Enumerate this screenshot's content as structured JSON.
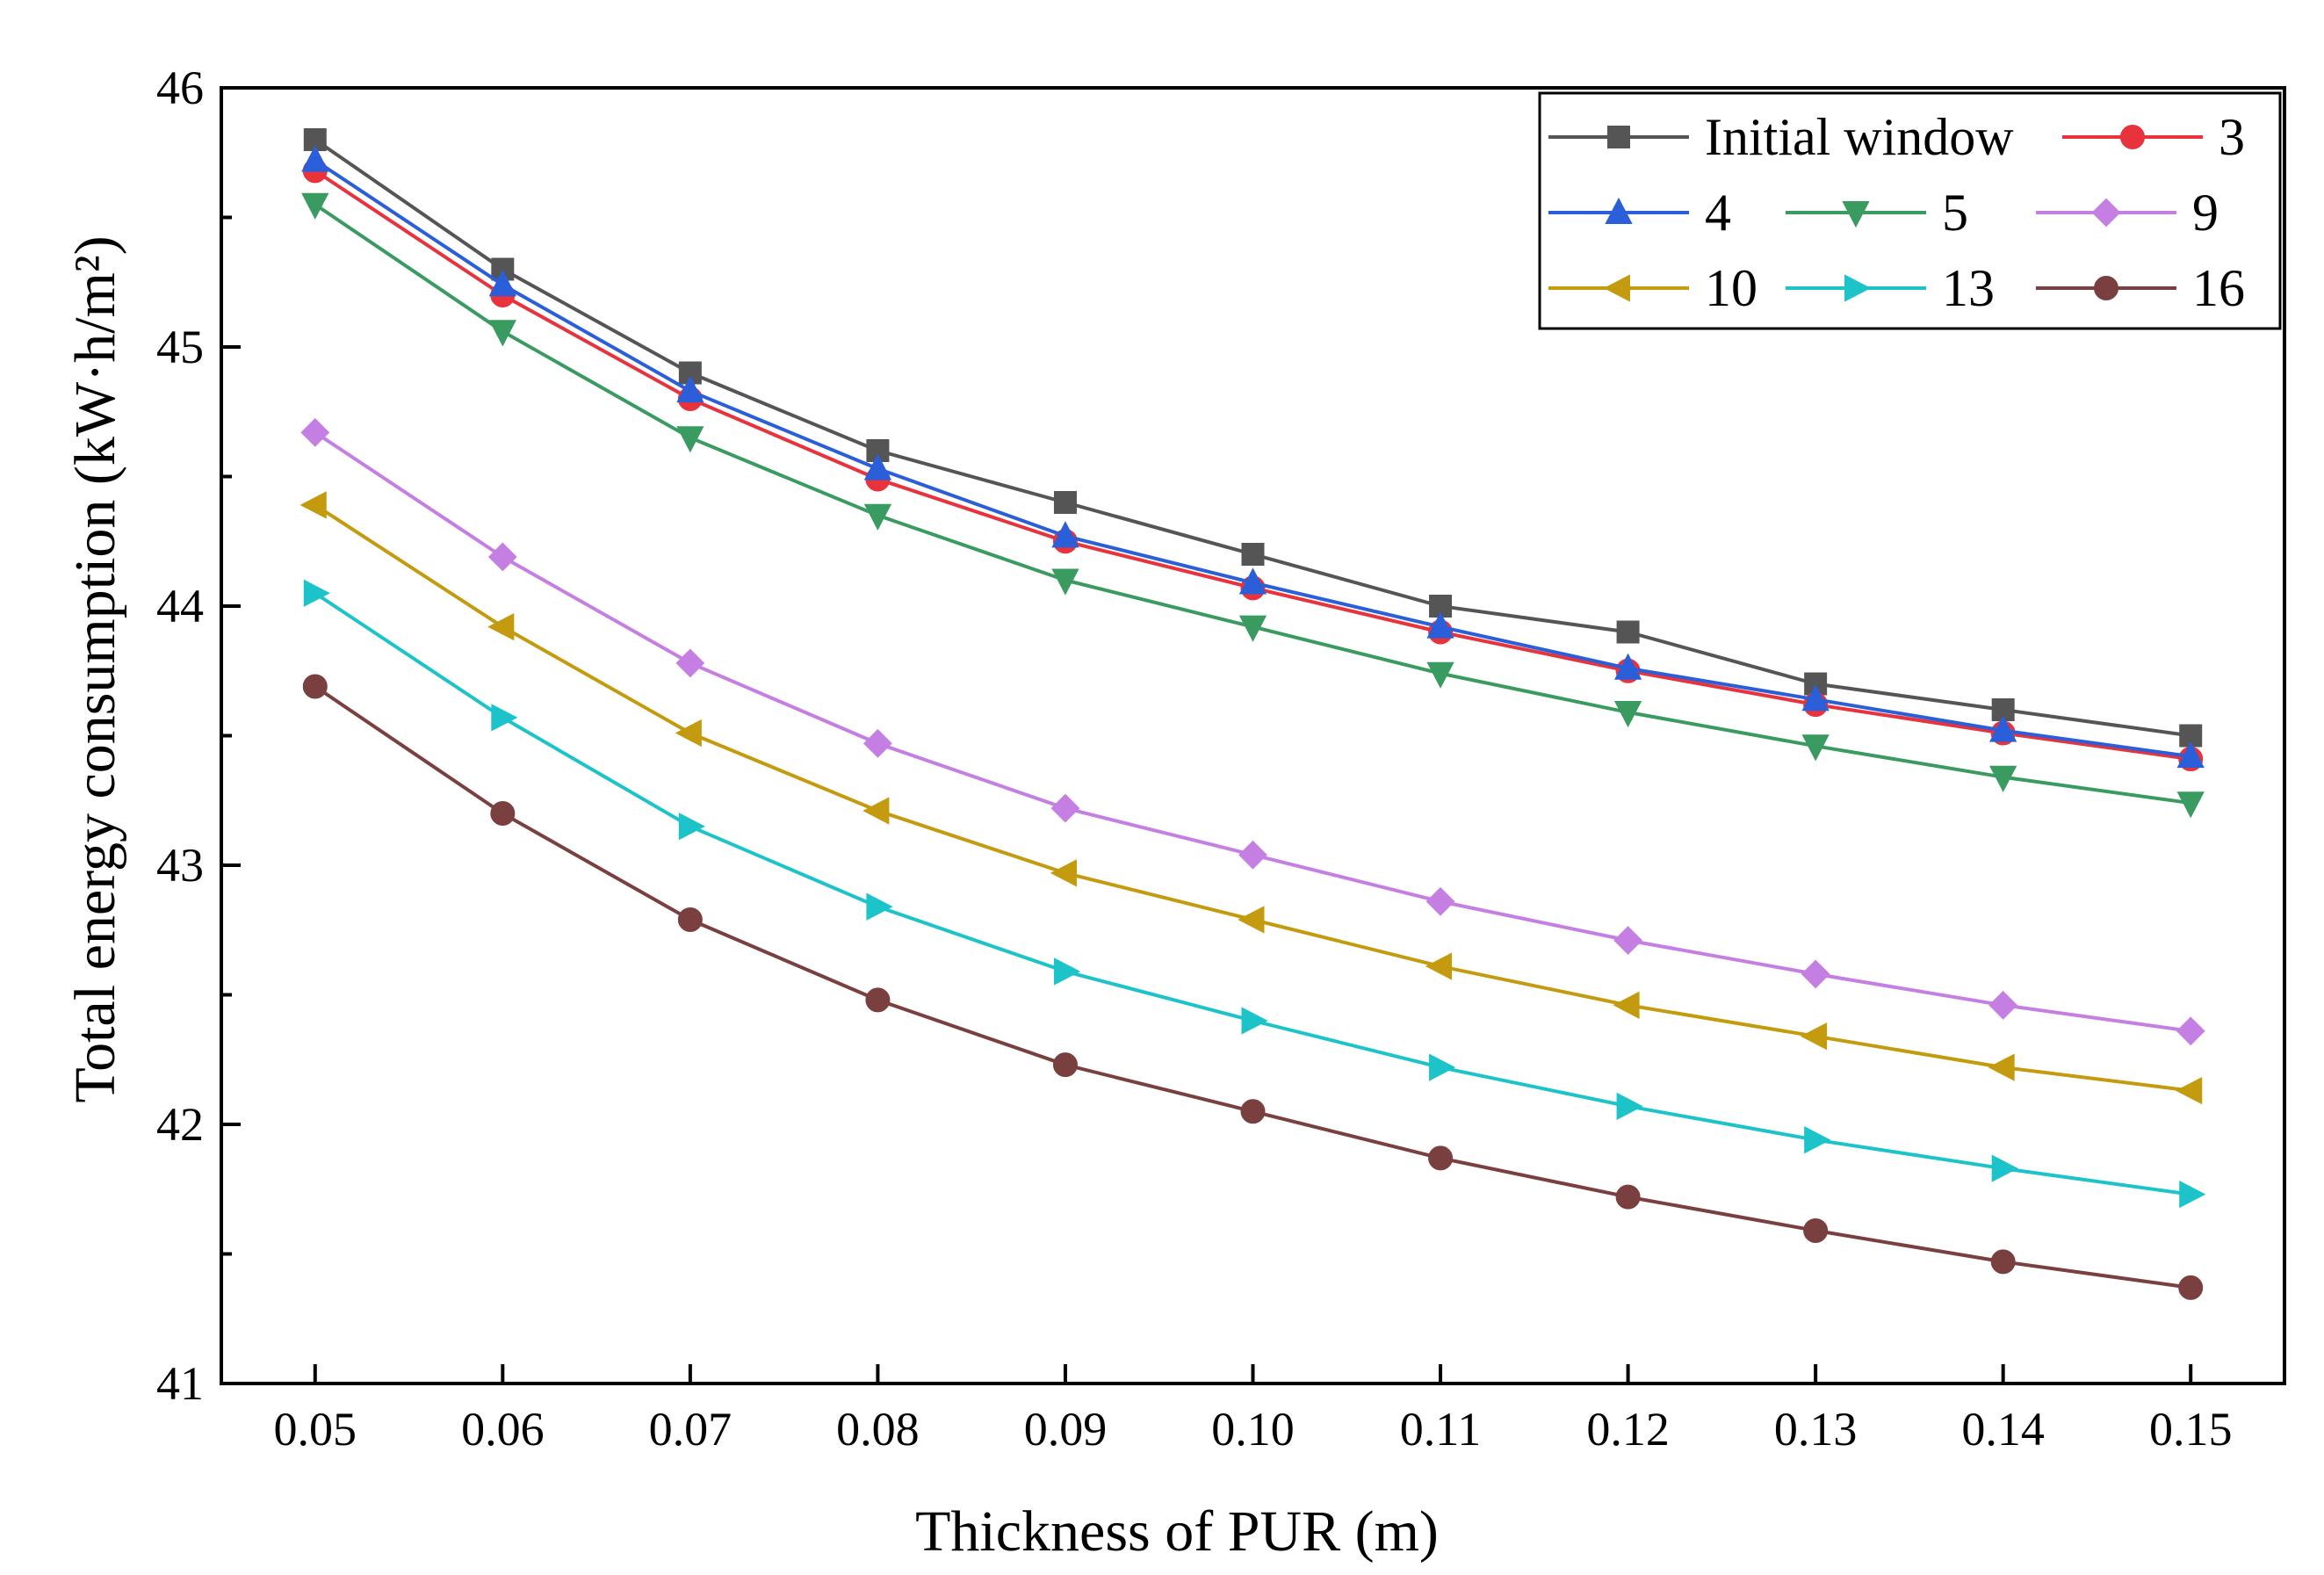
{
  "chart_data": {
    "type": "line",
    "xlabel": "Thickness of PUR (m)",
    "ylabel": "Total energy consumption (kW·h/m²)",
    "x": [
      0.05,
      0.06,
      0.07,
      0.08,
      0.09,
      0.1,
      0.11,
      0.12,
      0.13,
      0.14,
      0.15
    ],
    "x_tick_labels": [
      "0.05",
      "0.06",
      "0.07",
      "0.08",
      "0.09",
      "0.10",
      "0.11",
      "0.12",
      "0.13",
      "0.14",
      "0.15"
    ],
    "y_ticks": [
      41,
      42,
      43,
      44,
      45,
      46
    ],
    "xlim": [
      0.045,
      0.155
    ],
    "ylim": [
      41,
      46
    ],
    "grid": false,
    "legend_position": "top-right",
    "series": [
      {
        "name": "Initial window",
        "color": "#555555",
        "marker": "square",
        "values": [
          45.8,
          45.3,
          44.9,
          44.6,
          44.4,
          44.2,
          44.0,
          43.9,
          43.7,
          43.6,
          43.5
        ]
      },
      {
        "name": "3",
        "color": "#e8323c",
        "marker": "circle",
        "values": [
          45.68,
          45.2,
          44.8,
          44.49,
          44.25,
          44.07,
          43.9,
          43.75,
          43.62,
          43.51,
          43.41
        ]
      },
      {
        "name": "4",
        "color": "#2b5fd9",
        "marker": "triangle-up",
        "values": [
          45.72,
          45.24,
          44.83,
          44.53,
          44.27,
          44.09,
          43.92,
          43.76,
          43.64,
          43.52,
          43.42
        ]
      },
      {
        "name": "5",
        "color": "#3a9b60",
        "marker": "triangle-down",
        "values": [
          45.55,
          45.06,
          44.65,
          44.35,
          44.1,
          43.92,
          43.74,
          43.59,
          43.46,
          43.34,
          43.24
        ]
      },
      {
        "name": "9",
        "color": "#c57fe3",
        "marker": "diamond",
        "values": [
          44.67,
          44.19,
          43.78,
          43.47,
          43.22,
          43.04,
          42.86,
          42.71,
          42.58,
          42.46,
          42.36
        ]
      },
      {
        "name": "10",
        "color": "#c49a0e",
        "marker": "triangle-left",
        "values": [
          44.39,
          43.92,
          43.51,
          43.21,
          42.97,
          42.79,
          42.61,
          42.46,
          42.34,
          42.22,
          42.13
        ]
      },
      {
        "name": "13",
        "color": "#1cc4c9",
        "marker": "triangle-right",
        "values": [
          44.05,
          43.57,
          43.15,
          42.84,
          42.59,
          42.4,
          42.22,
          42.07,
          41.94,
          41.83,
          41.73
        ]
      },
      {
        "name": "16",
        "color": "#7a3f3f",
        "marker": "circle",
        "values": [
          43.69,
          43.2,
          42.79,
          42.48,
          42.23,
          42.05,
          41.87,
          41.72,
          41.59,
          41.47,
          41.37
        ]
      }
    ]
  }
}
